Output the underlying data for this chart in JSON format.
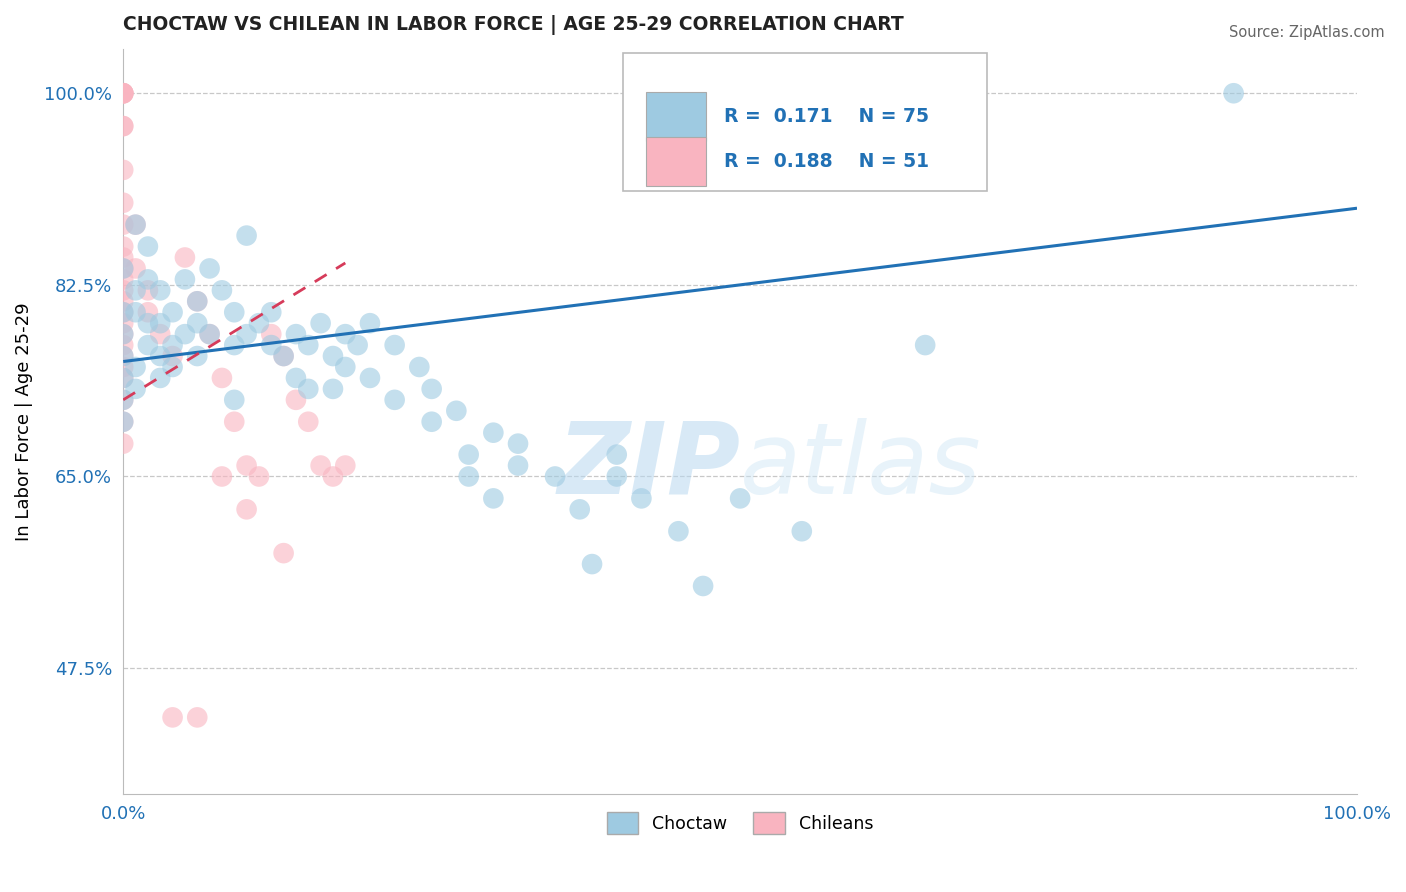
{
  "title": "CHOCTAW VS CHILEAN IN LABOR FORCE | AGE 25-29 CORRELATION CHART",
  "source": "Source: ZipAtlas.com",
  "ylabel": "In Labor Force | Age 25-29",
  "watermark_zip": "ZIP",
  "watermark_atlas": "atlas",
  "legend": {
    "choctaw_R": "0.171",
    "choctaw_N": "75",
    "chilean_R": "0.188",
    "chilean_N": "51"
  },
  "axis": {
    "xlim": [
      0.0,
      1.0
    ],
    "ylim": [
      0.36,
      1.04
    ],
    "xticks": [
      0.0,
      1.0
    ],
    "xticklabels": [
      "0.0%",
      "100.0%"
    ],
    "yticks": [
      0.475,
      0.65,
      0.825,
      1.0
    ],
    "yticklabels": [
      "47.5%",
      "65.0%",
      "82.5%",
      "100.0%"
    ]
  },
  "choctaw_color": "#9ecae1",
  "chilean_color": "#f9b4c0",
  "choctaw_line_color": "#2171b5",
  "chilean_line_color": "#d63b5a",
  "choctaw_scatter": [
    [
      0.0,
      0.84
    ],
    [
      0.0,
      0.78
    ],
    [
      0.0,
      0.76
    ],
    [
      0.0,
      0.8
    ],
    [
      0.0,
      0.74
    ],
    [
      0.0,
      0.72
    ],
    [
      0.0,
      0.7
    ],
    [
      0.01,
      0.88
    ],
    [
      0.01,
      0.82
    ],
    [
      0.01,
      0.8
    ],
    [
      0.01,
      0.75
    ],
    [
      0.01,
      0.73
    ],
    [
      0.02,
      0.86
    ],
    [
      0.02,
      0.79
    ],
    [
      0.02,
      0.77
    ],
    [
      0.02,
      0.83
    ],
    [
      0.03,
      0.82
    ],
    [
      0.03,
      0.76
    ],
    [
      0.03,
      0.79
    ],
    [
      0.03,
      0.74
    ],
    [
      0.04,
      0.8
    ],
    [
      0.04,
      0.75
    ],
    [
      0.04,
      0.77
    ],
    [
      0.05,
      0.83
    ],
    [
      0.05,
      0.78
    ],
    [
      0.06,
      0.81
    ],
    [
      0.06,
      0.76
    ],
    [
      0.06,
      0.79
    ],
    [
      0.07,
      0.84
    ],
    [
      0.07,
      0.78
    ],
    [
      0.08,
      0.82
    ],
    [
      0.09,
      0.77
    ],
    [
      0.09,
      0.8
    ],
    [
      0.09,
      0.72
    ],
    [
      0.1,
      0.87
    ],
    [
      0.1,
      0.78
    ],
    [
      0.11,
      0.79
    ],
    [
      0.12,
      0.8
    ],
    [
      0.12,
      0.77
    ],
    [
      0.13,
      0.76
    ],
    [
      0.14,
      0.78
    ],
    [
      0.14,
      0.74
    ],
    [
      0.15,
      0.77
    ],
    [
      0.15,
      0.73
    ],
    [
      0.16,
      0.79
    ],
    [
      0.17,
      0.76
    ],
    [
      0.17,
      0.73
    ],
    [
      0.18,
      0.78
    ],
    [
      0.18,
      0.75
    ],
    [
      0.19,
      0.77
    ],
    [
      0.2,
      0.79
    ],
    [
      0.2,
      0.74
    ],
    [
      0.22,
      0.77
    ],
    [
      0.22,
      0.72
    ],
    [
      0.24,
      0.75
    ],
    [
      0.25,
      0.7
    ],
    [
      0.25,
      0.73
    ],
    [
      0.27,
      0.71
    ],
    [
      0.28,
      0.67
    ],
    [
      0.28,
      0.65
    ],
    [
      0.3,
      0.69
    ],
    [
      0.3,
      0.63
    ],
    [
      0.32,
      0.66
    ],
    [
      0.32,
      0.68
    ],
    [
      0.35,
      0.65
    ],
    [
      0.37,
      0.62
    ],
    [
      0.38,
      0.57
    ],
    [
      0.4,
      0.65
    ],
    [
      0.4,
      0.67
    ],
    [
      0.42,
      0.63
    ],
    [
      0.45,
      0.6
    ],
    [
      0.47,
      0.55
    ],
    [
      0.5,
      0.63
    ],
    [
      0.55,
      0.6
    ],
    [
      0.65,
      0.77
    ],
    [
      0.9,
      1.0
    ]
  ],
  "chilean_scatter": [
    [
      0.0,
      1.0
    ],
    [
      0.0,
      1.0
    ],
    [
      0.0,
      1.0
    ],
    [
      0.0,
      1.0
    ],
    [
      0.0,
      1.0
    ],
    [
      0.0,
      0.97
    ],
    [
      0.0,
      0.97
    ],
    [
      0.0,
      0.93
    ],
    [
      0.0,
      0.9
    ],
    [
      0.0,
      0.88
    ],
    [
      0.0,
      0.86
    ],
    [
      0.0,
      0.85
    ],
    [
      0.0,
      0.84
    ],
    [
      0.0,
      0.83
    ],
    [
      0.0,
      0.82
    ],
    [
      0.0,
      0.81
    ],
    [
      0.0,
      0.8
    ],
    [
      0.0,
      0.79
    ],
    [
      0.0,
      0.78
    ],
    [
      0.0,
      0.77
    ],
    [
      0.0,
      0.76
    ],
    [
      0.0,
      0.75
    ],
    [
      0.0,
      0.74
    ],
    [
      0.0,
      0.72
    ],
    [
      0.0,
      0.7
    ],
    [
      0.0,
      0.68
    ],
    [
      0.01,
      0.88
    ],
    [
      0.01,
      0.84
    ],
    [
      0.02,
      0.82
    ],
    [
      0.02,
      0.8
    ],
    [
      0.03,
      0.78
    ],
    [
      0.04,
      0.76
    ],
    [
      0.05,
      0.85
    ],
    [
      0.06,
      0.81
    ],
    [
      0.07,
      0.78
    ],
    [
      0.08,
      0.74
    ],
    [
      0.09,
      0.7
    ],
    [
      0.1,
      0.66
    ],
    [
      0.11,
      0.65
    ],
    [
      0.12,
      0.78
    ],
    [
      0.13,
      0.76
    ],
    [
      0.14,
      0.72
    ],
    [
      0.15,
      0.7
    ],
    [
      0.16,
      0.66
    ],
    [
      0.17,
      0.65
    ],
    [
      0.18,
      0.66
    ],
    [
      0.04,
      0.43
    ],
    [
      0.08,
      0.65
    ],
    [
      0.1,
      0.62
    ],
    [
      0.13,
      0.58
    ],
    [
      0.06,
      0.43
    ]
  ],
  "choctaw_line": {
    "x0": 0.0,
    "y0": 0.755,
    "x1": 1.0,
    "y1": 0.895
  },
  "chilean_line": {
    "x0": 0.0,
    "y0": 0.72,
    "x1": 0.18,
    "y1": 0.845
  }
}
